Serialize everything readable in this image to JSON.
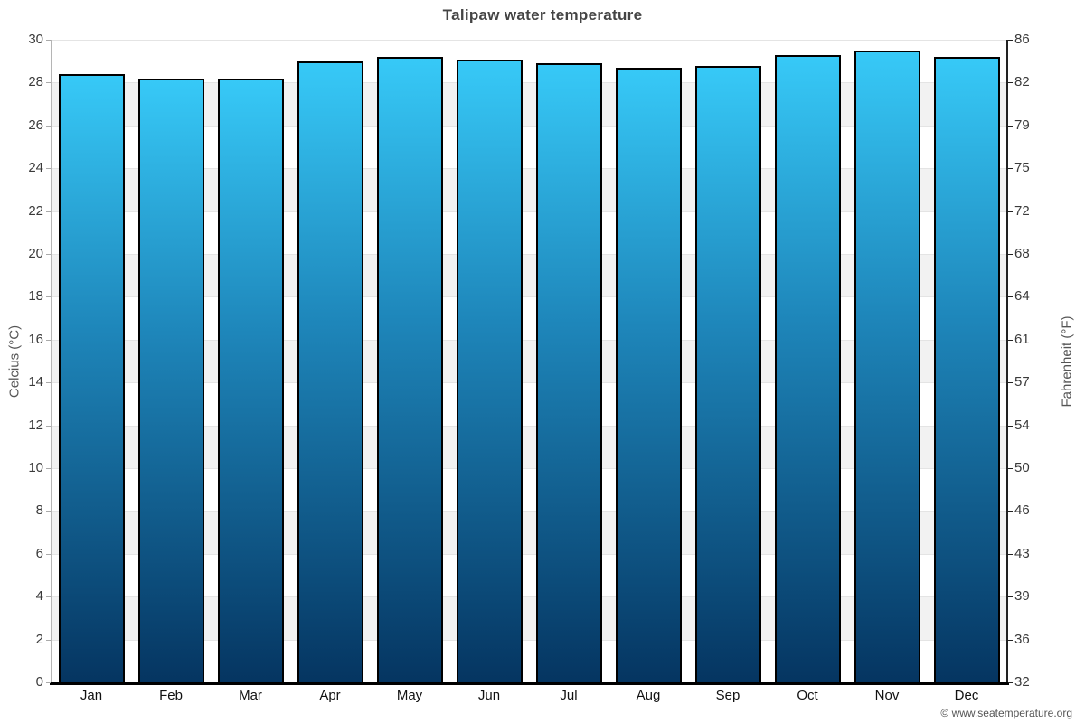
{
  "footer": {
    "credit": "© www.seatemperature.org"
  },
  "chart_data": {
    "type": "bar",
    "title": "Talipaw water temperature",
    "xlabel": "",
    "ylabel_left": "Celcius (°C)",
    "ylabel_right": "Fahrenheit (°F)",
    "categories": [
      "Jan",
      "Feb",
      "Mar",
      "Apr",
      "May",
      "Jun",
      "Jul",
      "Aug",
      "Sep",
      "Oct",
      "Nov",
      "Dec"
    ],
    "series": [
      {
        "name": "Water temperature (°C)",
        "values": [
          28.3,
          28.1,
          28.1,
          28.9,
          29.1,
          29.0,
          28.8,
          28.6,
          28.7,
          29.2,
          29.4,
          29.1
        ]
      }
    ],
    "ylim": [
      0,
      30
    ],
    "ytick_step": 2,
    "yticks_celsius": [
      0,
      2,
      4,
      6,
      8,
      10,
      12,
      14,
      16,
      18,
      20,
      22,
      24,
      26,
      28,
      30
    ],
    "yticks_fahrenheit": [
      32,
      36,
      39,
      43,
      46,
      50,
      54,
      57,
      61,
      64,
      68,
      72,
      75,
      79,
      82,
      86
    ],
    "grid": "horizontal-bands-alternating",
    "legend": "none",
    "colors": {
      "bar_gradient_top": "#37c9f7",
      "bar_gradient_mid": "#1e86ba",
      "bar_gradient_bottom": "#053561",
      "bar_border": "#000000",
      "band_light": "#ffffff",
      "band_dark": "#f2f2f2",
      "title_text": "#444444",
      "tick_text": "#3a3a3a",
      "axis_title_text": "#555555",
      "credit_text": "#555555"
    }
  }
}
